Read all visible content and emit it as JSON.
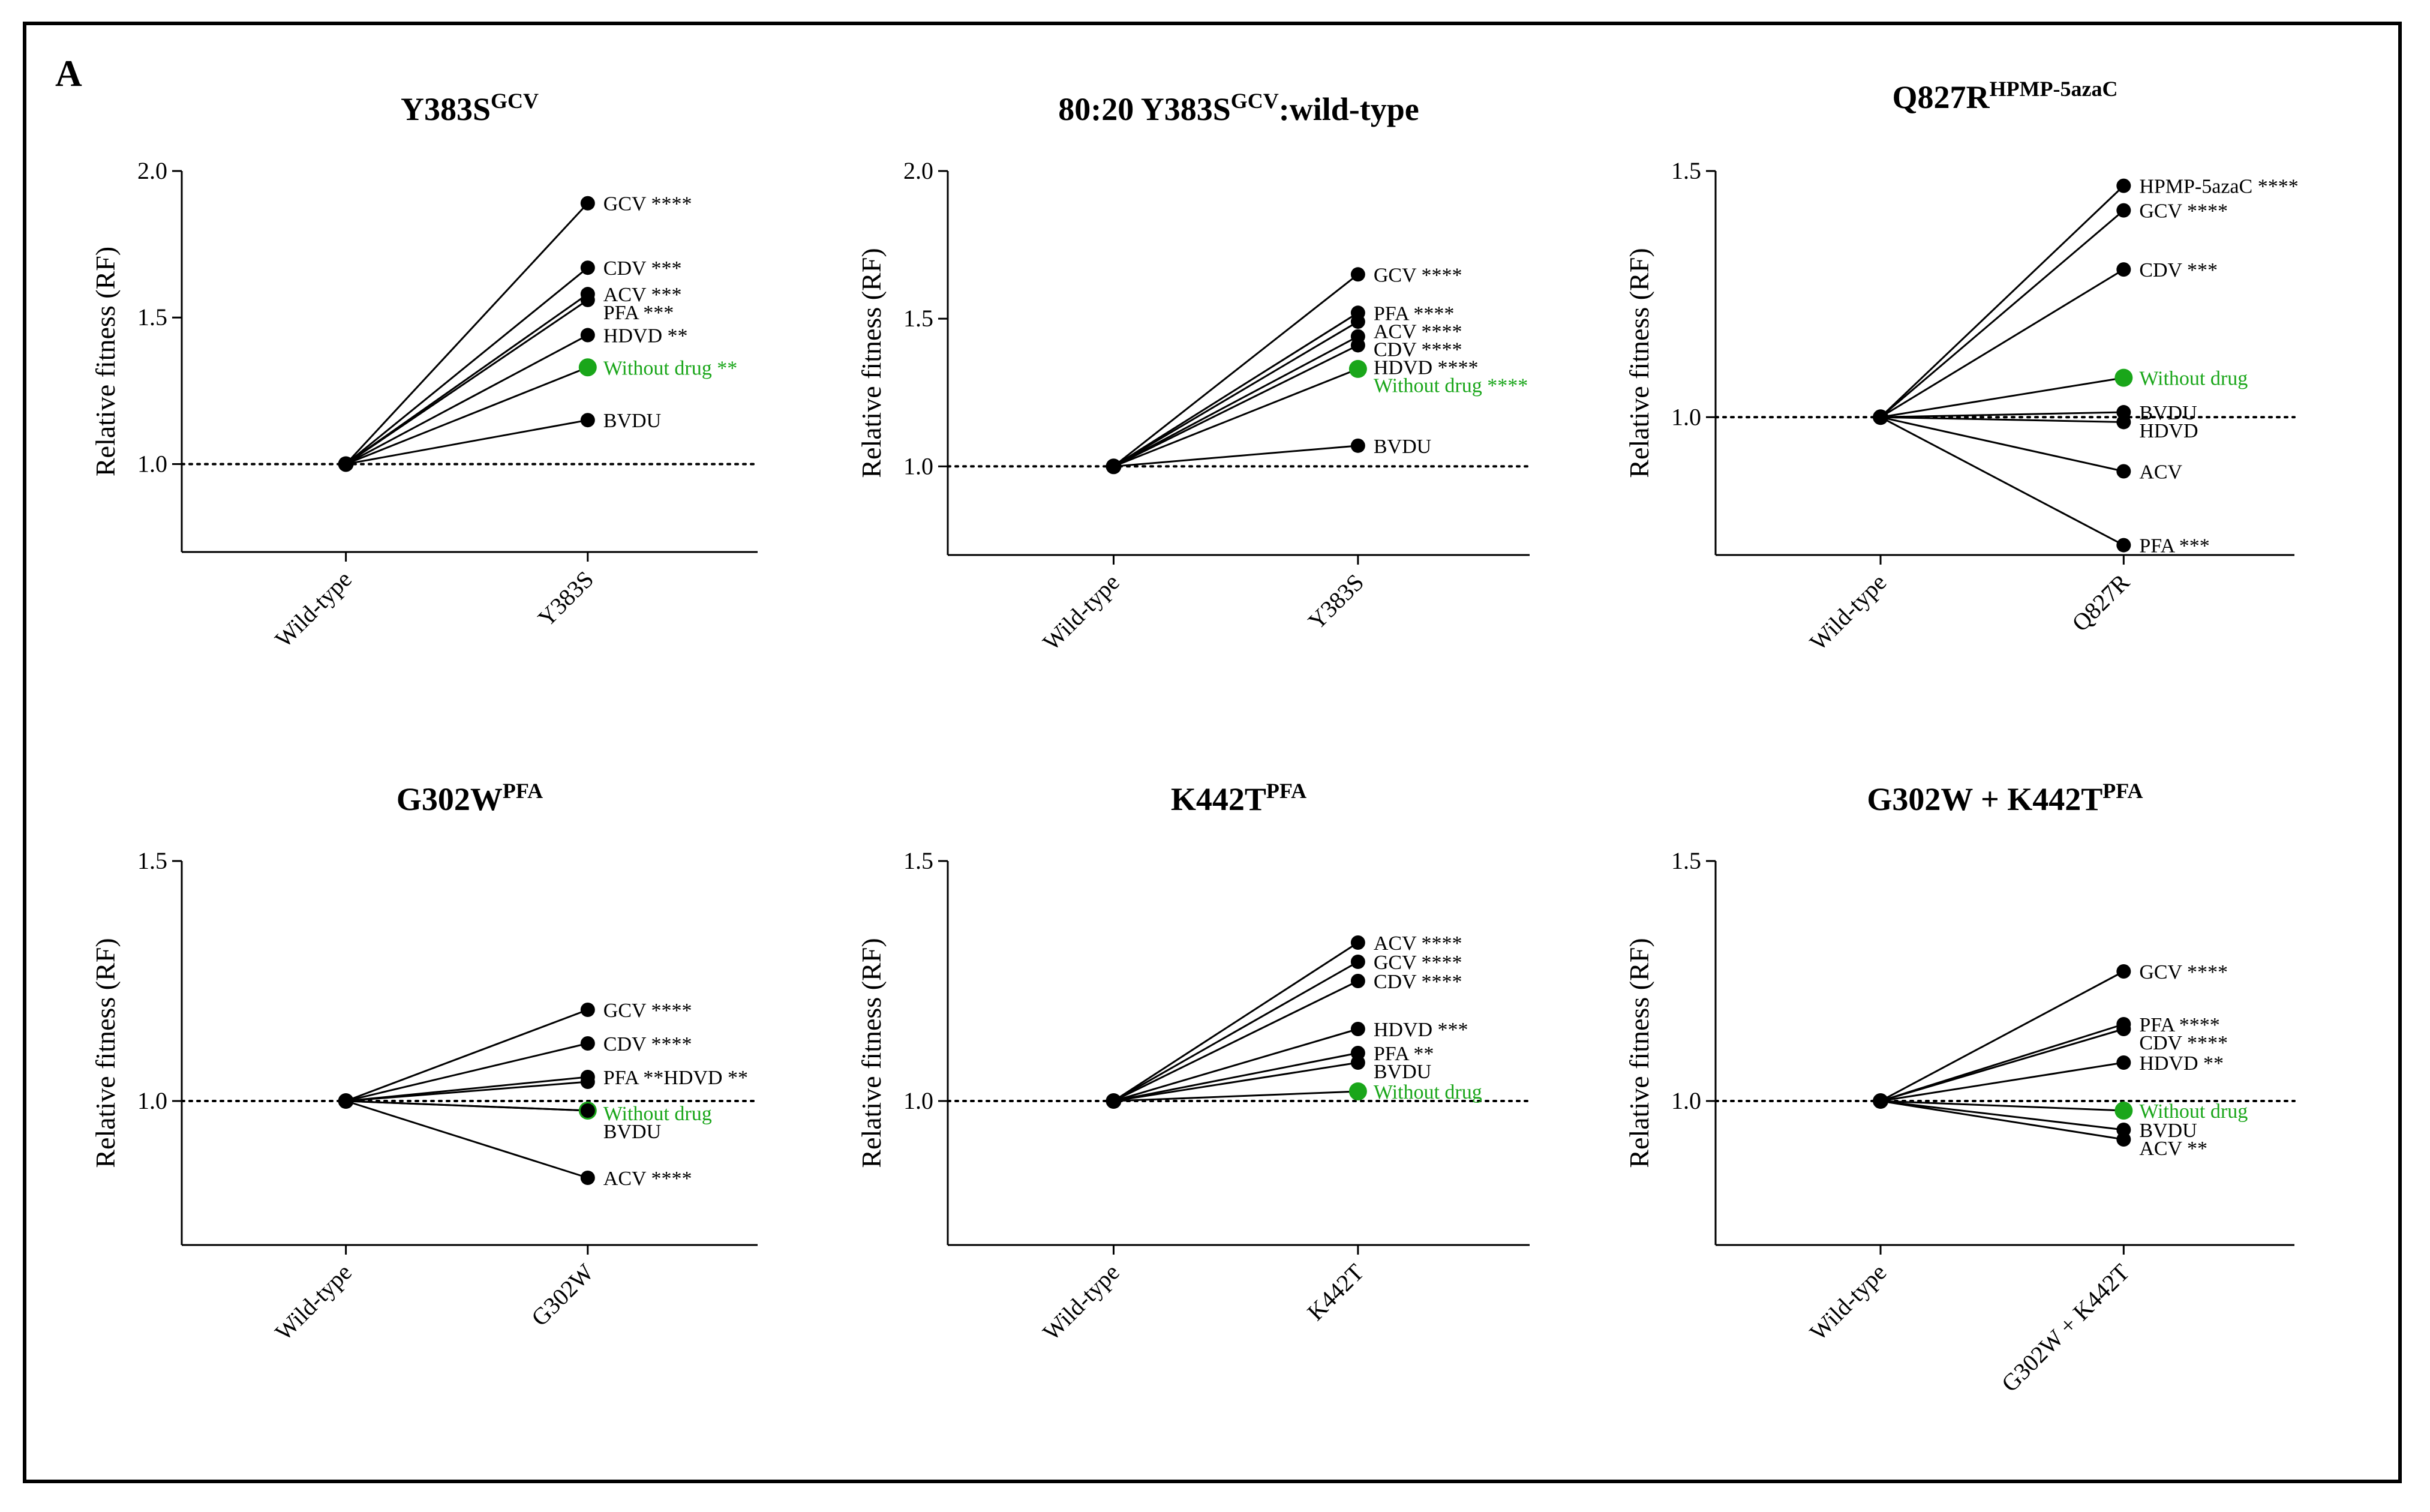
{
  "figure": {
    "panel_letter": "A",
    "colors": {
      "default": "#000000",
      "highlight": "#1aa61a",
      "axis": "#000000"
    }
  },
  "chart_data": [
    {
      "type": "line",
      "title": "Y383S",
      "title_sup": "GCV",
      "ylabel": "Relative fitness (RF)",
      "categories": [
        "Wild-type",
        "Y383S"
      ],
      "ylim": [
        0.7,
        2.0
      ],
      "yticks": [
        "1.0",
        "1.5",
        "2.0"
      ],
      "ytick_values": [
        1.0,
        1.5,
        2.0
      ],
      "reference_line": 1.0,
      "series": [
        {
          "name": "GCV",
          "label": "GCV ****",
          "values": [
            1.0,
            1.89
          ],
          "highlight": false
        },
        {
          "name": "CDV",
          "label": "CDV ***",
          "values": [
            1.0,
            1.67
          ],
          "highlight": false
        },
        {
          "name": "ACV",
          "label": "ACV ***",
          "values": [
            1.0,
            1.58
          ],
          "highlight": false
        },
        {
          "name": "PFA",
          "label": "PFA ***",
          "values": [
            1.0,
            1.56
          ],
          "highlight": false
        },
        {
          "name": "HDVD",
          "label": "HDVD **",
          "values": [
            1.0,
            1.44
          ],
          "highlight": false
        },
        {
          "name": "Without drug",
          "label": "Without drug **",
          "values": [
            1.0,
            1.33
          ],
          "highlight": true
        },
        {
          "name": "BVDU",
          "label": "BVDU",
          "values": [
            1.0,
            1.15
          ],
          "highlight": false
        }
      ]
    },
    {
      "type": "line",
      "title": "80:20 Y383S",
      "title_sup": "GCV",
      "title_suffix": ":wild-type",
      "ylabel": "Relative fitness (RF)",
      "categories": [
        "Wild-type",
        "Y383S"
      ],
      "ylim": [
        0.7,
        2.0
      ],
      "yticks": [
        "1.0",
        "1.5",
        "2.0"
      ],
      "ytick_values": [
        1.0,
        1.5,
        2.0
      ],
      "reference_line": 1.0,
      "series": [
        {
          "name": "GCV",
          "label": "GCV ****",
          "values": [
            1.0,
            1.65
          ],
          "highlight": false
        },
        {
          "name": "PFA",
          "label": "PFA ****",
          "values": [
            1.0,
            1.52
          ],
          "highlight": false
        },
        {
          "name": "ACV",
          "label": "ACV ****",
          "values": [
            1.0,
            1.49
          ],
          "highlight": false
        },
        {
          "name": "CDV",
          "label": "CDV ****",
          "values": [
            1.0,
            1.44
          ],
          "highlight": false
        },
        {
          "name": "HDVD",
          "label": "HDVD ****",
          "values": [
            1.0,
            1.41
          ],
          "highlight": false
        },
        {
          "name": "Without drug",
          "label": "Without drug ****",
          "values": [
            1.0,
            1.33
          ],
          "highlight": true
        },
        {
          "name": "BVDU",
          "label": "BVDU",
          "values": [
            1.0,
            1.07
          ],
          "highlight": false
        }
      ]
    },
    {
      "type": "line",
      "title": "Q827R",
      "title_sup": "HPMP-5azaC",
      "ylabel": "Relative fitness (RF)",
      "categories": [
        "Wild-type",
        "Q827R"
      ],
      "ylim": [
        0.72,
        1.5
      ],
      "yticks": [
        "1.0",
        "1.5"
      ],
      "ytick_values": [
        1.0,
        1.5
      ],
      "reference_line": 1.0,
      "series": [
        {
          "name": "HPMP-5azaC",
          "label": "HPMP-5azaC ****",
          "values": [
            1.0,
            1.47
          ],
          "highlight": false
        },
        {
          "name": "GCV",
          "label": "GCV ****",
          "values": [
            1.0,
            1.42
          ],
          "highlight": false
        },
        {
          "name": "CDV",
          "label": "CDV ***",
          "values": [
            1.0,
            1.3
          ],
          "highlight": false
        },
        {
          "name": "Without drug",
          "label": "Without drug",
          "values": [
            1.0,
            1.08
          ],
          "highlight": true
        },
        {
          "name": "BVDU",
          "label": "BVDU",
          "values": [
            1.0,
            1.01
          ],
          "highlight": false
        },
        {
          "name": "HDVD",
          "label": "HDVD",
          "values": [
            1.0,
            0.99
          ],
          "highlight": false
        },
        {
          "name": "ACV",
          "label": "ACV",
          "values": [
            1.0,
            0.89
          ],
          "highlight": false
        },
        {
          "name": "PFA",
          "label": "PFA ***",
          "values": [
            1.0,
            0.74
          ],
          "highlight": false
        }
      ]
    },
    {
      "type": "line",
      "title": "G302W",
      "title_sup": "PFA",
      "ylabel": "Relative fitness (RF)",
      "categories": [
        "Wild-type",
        "G302W"
      ],
      "ylim": [
        0.7,
        1.5
      ],
      "yticks": [
        "1.0",
        "1.5"
      ],
      "ytick_values": [
        1.0,
        1.5
      ],
      "reference_line": 1.0,
      "series": [
        {
          "name": "GCV",
          "label": "GCV ****",
          "values": [
            1.0,
            1.19
          ],
          "highlight": false
        },
        {
          "name": "CDV",
          "label": "CDV ****",
          "values": [
            1.0,
            1.12
          ],
          "highlight": false
        },
        {
          "name": "PFA",
          "label": "PFA **HDVD **",
          "values": [
            1.0,
            1.05
          ],
          "highlight": false
        },
        {
          "name": "HDVD",
          "label": "",
          "values": [
            1.0,
            1.04
          ],
          "highlight": false
        },
        {
          "name": "Without drug",
          "label": "Without drug",
          "values": [
            1.0,
            0.98
          ],
          "highlight": true
        },
        {
          "name": "BVDU",
          "label": "BVDU",
          "values": [
            1.0,
            0.98
          ],
          "highlight": false
        },
        {
          "name": "ACV",
          "label": "ACV ****",
          "values": [
            1.0,
            0.84
          ],
          "highlight": false
        }
      ]
    },
    {
      "type": "line",
      "title": "K442T",
      "title_sup": "PFA",
      "ylabel": "Relative fitness (RF)",
      "categories": [
        "Wild-type",
        "K442T"
      ],
      "ylim": [
        0.7,
        1.5
      ],
      "yticks": [
        "1.0",
        "1.5"
      ],
      "ytick_values": [
        1.0,
        1.5
      ],
      "reference_line": 1.0,
      "series": [
        {
          "name": "ACV",
          "label": "ACV ****",
          "values": [
            1.0,
            1.33
          ],
          "highlight": false
        },
        {
          "name": "GCV",
          "label": "GCV ****",
          "values": [
            1.0,
            1.29
          ],
          "highlight": false
        },
        {
          "name": "CDV",
          "label": "CDV ****",
          "values": [
            1.0,
            1.25
          ],
          "highlight": false
        },
        {
          "name": "HDVD",
          "label": "HDVD ***",
          "values": [
            1.0,
            1.15
          ],
          "highlight": false
        },
        {
          "name": "PFA",
          "label": "PFA **",
          "values": [
            1.0,
            1.1
          ],
          "highlight": false
        },
        {
          "name": "BVDU",
          "label": "BVDU",
          "values": [
            1.0,
            1.08
          ],
          "highlight": false
        },
        {
          "name": "Without drug",
          "label": "Without drug",
          "values": [
            1.0,
            1.02
          ],
          "highlight": true
        }
      ]
    },
    {
      "type": "line",
      "title": "G302W + K442T",
      "title_sup": "PFA",
      "ylabel": "Relative fitness (RF)",
      "categories": [
        "Wild-type",
        "G302W + K442T"
      ],
      "ylim": [
        0.7,
        1.5
      ],
      "yticks": [
        "1.0",
        "1.5"
      ],
      "ytick_values": [
        1.0,
        1.5
      ],
      "reference_line": 1.0,
      "series": [
        {
          "name": "GCV",
          "label": "GCV ****",
          "values": [
            1.0,
            1.27
          ],
          "highlight": false
        },
        {
          "name": "PFA",
          "label": "PFA ****",
          "values": [
            1.0,
            1.16
          ],
          "highlight": false
        },
        {
          "name": "CDV",
          "label": "CDV ****",
          "values": [
            1.0,
            1.15
          ],
          "highlight": false
        },
        {
          "name": "HDVD",
          "label": "HDVD **",
          "values": [
            1.0,
            1.08
          ],
          "highlight": false
        },
        {
          "name": "Without drug",
          "label": "Without drug",
          "values": [
            1.0,
            0.98
          ],
          "highlight": true
        },
        {
          "name": "BVDU",
          "label": "BVDU",
          "values": [
            1.0,
            0.94
          ],
          "highlight": false
        },
        {
          "name": "ACV",
          "label": "ACV **",
          "values": [
            1.0,
            0.92
          ],
          "highlight": false
        }
      ]
    }
  ]
}
